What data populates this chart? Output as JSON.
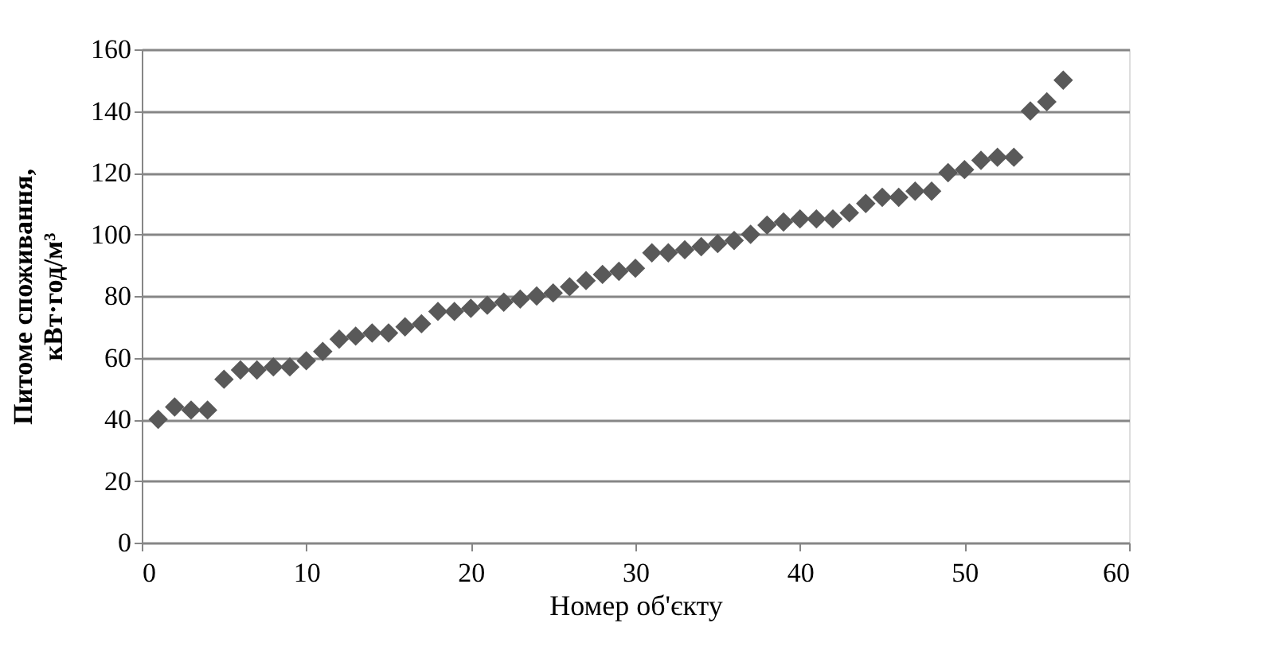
{
  "chart_data": {
    "type": "scatter",
    "xlabel": "Номер об'єкту",
    "ylabel": "Питоме споживання, кВт·год/м³",
    "x": [
      1,
      2,
      3,
      4,
      5,
      6,
      7,
      8,
      9,
      10,
      11,
      12,
      13,
      14,
      15,
      16,
      17,
      18,
      19,
      20,
      21,
      22,
      23,
      24,
      25,
      26,
      27,
      28,
      29,
      30,
      31,
      32,
      33,
      34,
      35,
      36,
      37,
      38,
      39,
      40,
      41,
      42,
      43,
      44,
      45,
      46,
      47,
      48,
      49,
      50,
      51,
      52,
      53,
      54,
      55,
      56
    ],
    "series": [
      {
        "color": "#595959",
        "values": [
          40,
          44,
          43,
          43,
          53,
          56,
          56,
          57,
          57,
          59,
          62,
          66,
          67,
          68,
          68,
          70,
          71,
          75,
          75,
          76,
          77,
          78,
          79,
          80,
          81,
          83,
          85,
          87,
          88,
          89,
          94,
          94,
          95,
          96,
          97,
          98,
          100,
          103,
          104,
          105,
          105,
          105,
          107,
          110,
          112,
          112,
          114,
          114,
          120,
          121,
          124,
          125,
          125,
          140,
          143,
          150
        ]
      }
    ],
    "xlim": [
      0,
      60
    ],
    "xticks": [
      0,
      10,
      20,
      30,
      40,
      50,
      60
    ],
    "ylim": [
      0,
      160
    ],
    "yticks": [
      0,
      20,
      40,
      60,
      80,
      100,
      120,
      140,
      160
    ],
    "grid": "y",
    "marker": "diamond"
  }
}
